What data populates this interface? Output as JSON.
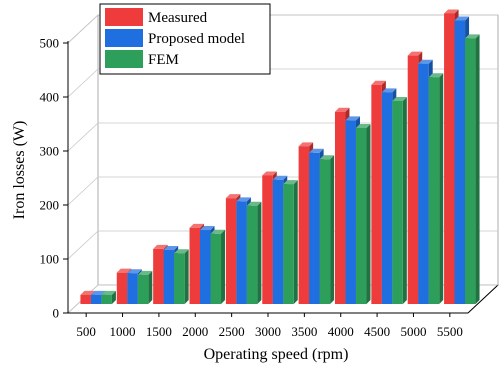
{
  "chart_data": {
    "type": "bar",
    "style": "3d-clustered",
    "title": "",
    "xlabel": "Operating speed (rpm)",
    "ylabel": "Iron losses (W)",
    "ylim": [
      0,
      500
    ],
    "yticks": [
      0,
      100,
      200,
      300,
      400,
      500
    ],
    "categories": [
      "500",
      "1000",
      "1500",
      "2000",
      "2500",
      "3000",
      "3500",
      "4000",
      "4500",
      "5000",
      "5500"
    ],
    "series": [
      {
        "name": "Measured",
        "color": "#ee3b3b",
        "values": [
          17,
          58,
          102,
          141,
          196,
          238,
          292,
          356,
          406,
          460,
          538
        ]
      },
      {
        "name": "Proposed model",
        "color": "#1f6fe0",
        "values": [
          17,
          57,
          100,
          137,
          190,
          230,
          280,
          340,
          392,
          445,
          525
        ]
      },
      {
        "name": "FEM",
        "color": "#2e9e5b",
        "values": [
          17,
          54,
          94,
          130,
          182,
          222,
          268,
          326,
          376,
          420,
          492
        ]
      }
    ],
    "legend_position": "top-left",
    "grid": true
  }
}
